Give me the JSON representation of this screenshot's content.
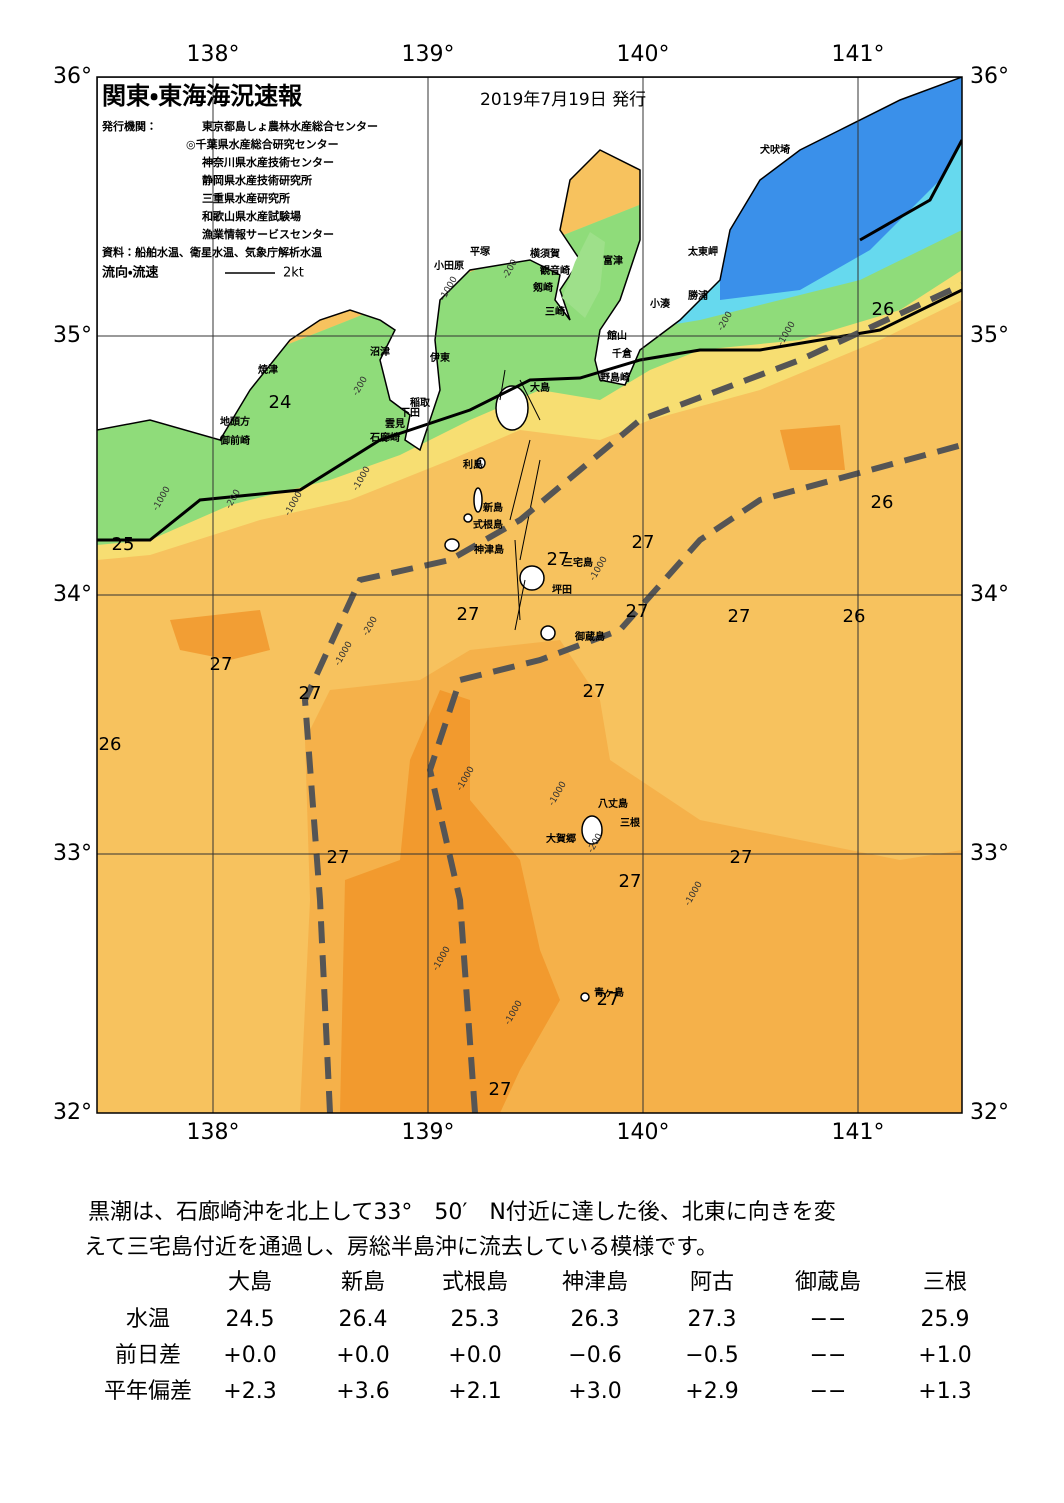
{
  "header": {
    "title": "関東・東海海況速報",
    "date": "2019年7月19日 発行",
    "issuer_label": "発行機関：",
    "issuers": [
      "東京都島しょ農林水産総合センター",
      "◎千葉県水産総合研究センター",
      "神奈川県水産技術センター",
      "静岡県水産技術研究所",
      "三重県水産研究所",
      "和歌山県水産試験場",
      "漁業情報サービスセンター"
    ],
    "source": "資料：船舶水温、衛星水温、気象庁解析水温",
    "legend_label": "流向・流速",
    "legend_scale": "2kt"
  },
  "map": {
    "lon_ticks": [
      {
        "value": 138,
        "label": "138°"
      },
      {
        "value": 139,
        "label": "139°"
      },
      {
        "value": 140,
        "label": "140°"
      },
      {
        "value": 141,
        "label": "141°"
      }
    ],
    "lat_ticks": [
      {
        "value": 36,
        "label": "36°"
      },
      {
        "value": 35,
        "label": "35°"
      },
      {
        "value": 34,
        "label": "34°"
      },
      {
        "value": 33,
        "label": "33°"
      },
      {
        "value": 32,
        "label": "32°"
      }
    ],
    "places": [
      "犬吠埼",
      "太東岬",
      "勝浦",
      "小湊",
      "富津",
      "館山",
      "千倉",
      "野島崎",
      "横須賀",
      "観音崎",
      "剱崎",
      "三崎",
      "平塚",
      "小田原",
      "沼津",
      "伊東",
      "稲取",
      "下田",
      "雲見",
      "石廊崎",
      "焼津",
      "地頭方",
      "御前崎",
      "大島",
      "利島",
      "新島",
      "式根島",
      "神津島",
      "三宅島",
      "坪田",
      "御蔵島",
      "八丈島",
      "三根",
      "大賀郷",
      "青ヶ島"
    ],
    "temperature_labels": [
      24,
      25,
      26,
      26,
      26,
      26,
      27,
      27,
      27,
      27,
      27,
      27,
      27,
      27,
      27,
      27,
      27,
      27,
      27
    ],
    "depth_labels": [
      -200,
      -1000,
      -200,
      -1000,
      -200,
      -1000,
      -1000,
      -1000,
      -200,
      -1000,
      -1000,
      -1000,
      -200,
      -1000,
      -1000,
      -1000,
      -1000,
      -200
    ]
  },
  "summary": {
    "text": [
      "黒潮は、石廊崎沖を北上して33°　50′　N付近に達した後、北東に向きを変",
      "えて三宅島付近を通過し、房総半島沖に流去している模様です。"
    ],
    "columns": [
      "大島",
      "新島",
      "式根島",
      "神津島",
      "阿古",
      "御蔵島",
      "三根"
    ],
    "rows": [
      {
        "label": "水温",
        "values": [
          "24.5",
          "26.4",
          "25.3",
          "26.3",
          "27.3",
          "−−",
          "25.9"
        ]
      },
      {
        "label": "前日差",
        "values": [
          "+0.0",
          "+0.0",
          "+0.0",
          "−0.6",
          "−0.5",
          "−−",
          "+1.0"
        ]
      },
      {
        "label": "平年偏差",
        "values": [
          "+2.3",
          "+3.6",
          "+2.1",
          "+3.0",
          "+2.9",
          "−−",
          "+1.3"
        ]
      }
    ]
  }
}
